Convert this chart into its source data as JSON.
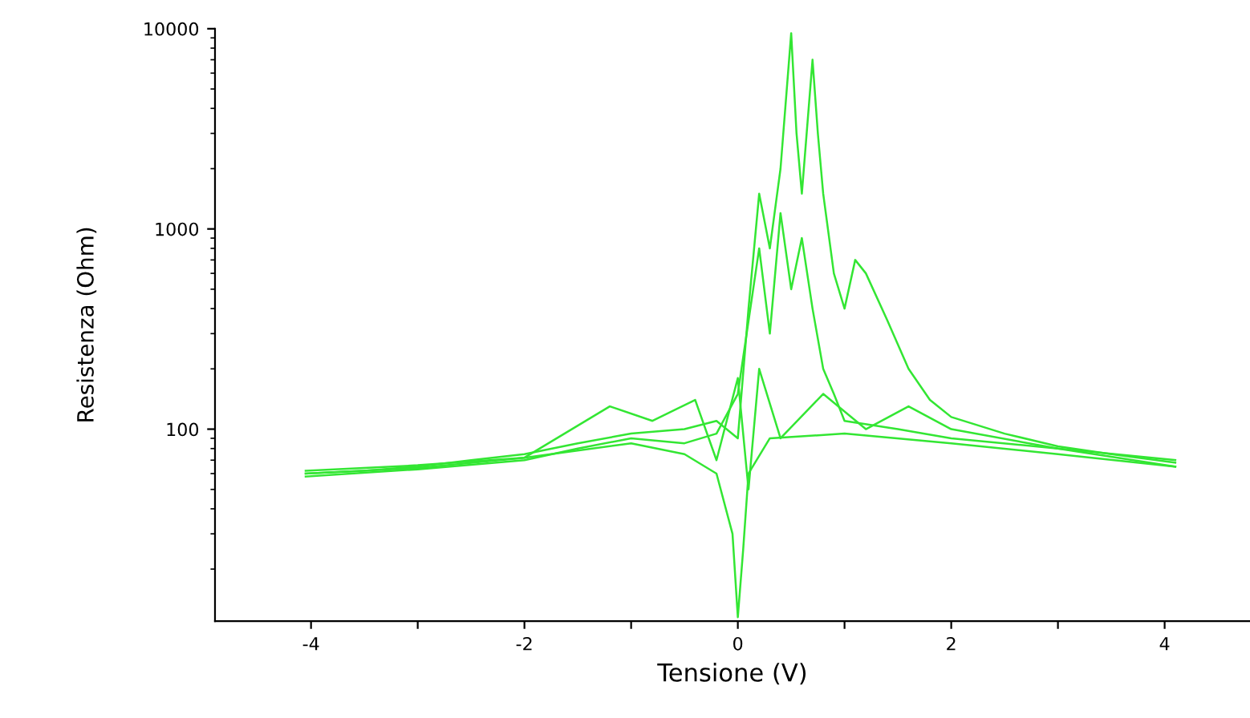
{
  "chart_data": {
    "type": "line",
    "xlabel": "Tensione (V)",
    "ylabel": "Resistenza (Ohm)",
    "log": "y",
    "grid": false,
    "legend": false,
    "marker": "none",
    "line_style": "solid",
    "xlim": [
      -4.9,
      4.8
    ],
    "ylim": [
      11,
      10000
    ],
    "xticks": [
      -4,
      {
        "value": -3,
        "label": null
      },
      -2,
      {
        "value": -1,
        "label": null
      },
      0,
      {
        "value": 1,
        "label": null
      },
      2,
      {
        "value": 3,
        "label": null
      },
      4
    ],
    "yticks": [
      100,
      1000,
      10000
    ],
    "series": [
      {
        "color": "#33e633",
        "x": [
          -4.05,
          -3.5,
          -3,
          -2.5,
          -2,
          -1.5,
          -1,
          -0.5,
          -0.2,
          0,
          0.1,
          0.2,
          0.3,
          0.4,
          0.5,
          0.55,
          0.6,
          0.7,
          0.75,
          0.8,
          0.9,
          1.0,
          1.1,
          1.2,
          1.4,
          1.6,
          1.8,
          2.0,
          2.5,
          3,
          3.5,
          4.1
        ],
        "values": [
          60,
          62,
          65,
          70,
          75,
          85,
          95,
          100,
          110,
          90,
          400,
          1500,
          800,
          2000,
          9500,
          3000,
          1500,
          7000,
          3000,
          1500,
          600,
          400,
          700,
          600,
          350,
          200,
          140,
          115,
          95,
          82,
          75,
          68
        ]
      },
      {
        "color": "#33e633",
        "x": [
          -4.05,
          -3,
          -2,
          -1.5,
          -1,
          -0.5,
          -0.2,
          0,
          0.2,
          0.3,
          0.4,
          0.5,
          0.6,
          0.7,
          0.8,
          0.9,
          1.0,
          1.5,
          2,
          3,
          4.1
        ],
        "values": [
          58,
          63,
          70,
          80,
          90,
          85,
          95,
          150,
          800,
          300,
          1200,
          500,
          900,
          400,
          200,
          150,
          110,
          100,
          90,
          80,
          65
        ]
      },
      {
        "color": "#33e633",
        "x": [
          -4.05,
          -3,
          -2,
          -1,
          -0.5,
          -0.2,
          -0.05,
          0,
          0.05,
          0.1,
          0.3,
          1,
          2,
          3,
          4.1
        ],
        "values": [
          62,
          66,
          72,
          85,
          75,
          60,
          30,
          11.5,
          25,
          60,
          90,
          95,
          85,
          75,
          65
        ]
      },
      {
        "color": "#33e633",
        "x": [
          -4.05,
          -3,
          -2,
          -1.2,
          -0.8,
          -0.4,
          -0.2,
          0,
          0.1,
          0.2,
          0.4,
          0.8,
          1.2,
          1.6,
          2,
          3,
          4.1
        ],
        "values": [
          60,
          64,
          72,
          130,
          110,
          140,
          70,
          180,
          50,
          200,
          90,
          150,
          100,
          130,
          100,
          80,
          70
        ]
      }
    ]
  }
}
